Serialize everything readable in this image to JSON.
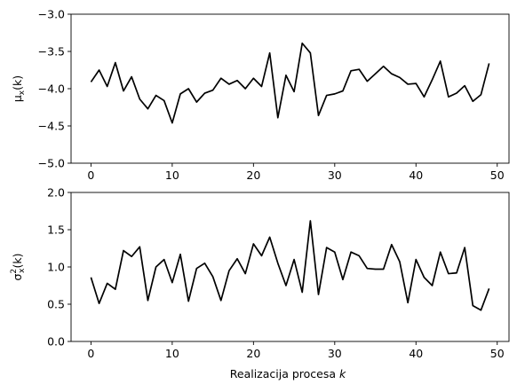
{
  "chart_data": [
    {
      "type": "line",
      "title": "",
      "xlabel": "",
      "ylabel_base": "μ",
      "ylabel_sub": "x",
      "ylabel_arg": "(k)",
      "xlim": [
        -2.45,
        51.45
      ],
      "ylim": [
        -5.0,
        -3.0
      ],
      "xticks": [
        0,
        10,
        20,
        30,
        40,
        50
      ],
      "yticks": [
        -5.0,
        -4.5,
        -4.0,
        -3.5,
        -3.0
      ],
      "ytick_labels": [
        "−5.0",
        "−4.5",
        "−4.0",
        "−3.5",
        "−3.0"
      ],
      "grid": false,
      "color": "#000000",
      "x": [
        0,
        1,
        2,
        3,
        4,
        5,
        6,
        7,
        8,
        9,
        10,
        11,
        12,
        13,
        14,
        15,
        16,
        17,
        18,
        19,
        20,
        21,
        22,
        23,
        24,
        25,
        26,
        27,
        28,
        29,
        30,
        31,
        32,
        33,
        34,
        35,
        36,
        37,
        38,
        39,
        40,
        41,
        42,
        43,
        44,
        45,
        46,
        47,
        48,
        49
      ],
      "y": [
        -3.91,
        -3.75,
        -3.97,
        -3.65,
        -4.03,
        -3.84,
        -4.14,
        -4.27,
        -4.09,
        -4.16,
        -4.46,
        -4.07,
        -4.0,
        -4.18,
        -4.06,
        -4.02,
        -3.86,
        -3.94,
        -3.89,
        -4.0,
        -3.86,
        -3.97,
        -3.52,
        -4.39,
        -3.82,
        -4.04,
        -3.39,
        -3.52,
        -4.36,
        -4.09,
        -4.07,
        -4.03,
        -3.76,
        -3.74,
        -3.9,
        -3.8,
        -3.7,
        -3.8,
        -3.85,
        -3.94,
        -3.93,
        -4.11,
        -3.88,
        -3.63,
        -4.11,
        -4.06,
        -3.96,
        -4.17,
        -4.08,
        -3.66
      ]
    },
    {
      "type": "line",
      "title": "",
      "xlabel": "Realizacija procesa ",
      "xlabel_var": "k",
      "ylabel_base": "σ",
      "ylabel_sub": "x",
      "ylabel_sup": "2",
      "ylabel_arg": "(k)",
      "xlim": [
        -2.45,
        51.45
      ],
      "ylim": [
        0.0,
        2.0
      ],
      "xticks": [
        0,
        10,
        20,
        30,
        40,
        50
      ],
      "yticks": [
        0.0,
        0.5,
        1.0,
        1.5,
        2.0
      ],
      "ytick_labels": [
        "0.0",
        "0.5",
        "1.0",
        "1.5",
        "2.0"
      ],
      "grid": false,
      "color": "#000000",
      "x": [
        0,
        1,
        2,
        3,
        4,
        5,
        6,
        7,
        8,
        9,
        10,
        11,
        12,
        13,
        14,
        15,
        16,
        17,
        18,
        19,
        20,
        21,
        22,
        23,
        24,
        25,
        26,
        27,
        28,
        29,
        30,
        31,
        32,
        33,
        34,
        35,
        36,
        37,
        38,
        39,
        40,
        41,
        42,
        43,
        44,
        45,
        46,
        47,
        48,
        49
      ],
      "y": [
        0.86,
        0.51,
        0.78,
        0.7,
        1.22,
        1.14,
        1.27,
        0.55,
        1.0,
        1.1,
        0.79,
        1.17,
        0.54,
        0.98,
        1.05,
        0.87,
        0.55,
        0.95,
        1.11,
        0.91,
        1.31,
        1.15,
        1.4,
        1.05,
        0.75,
        1.1,
        0.66,
        1.62,
        0.63,
        1.26,
        1.2,
        0.83,
        1.2,
        1.15,
        0.98,
        0.97,
        0.97,
        1.3,
        1.07,
        0.52,
        1.1,
        0.86,
        0.75,
        1.2,
        0.91,
        0.92,
        1.26,
        0.48,
        0.42,
        0.71
      ]
    }
  ]
}
